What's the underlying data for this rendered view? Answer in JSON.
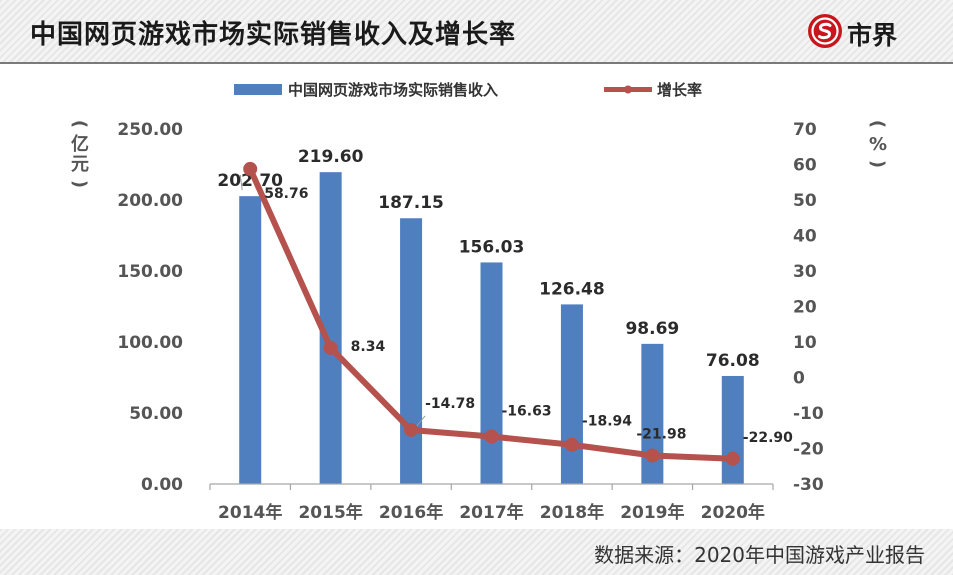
{
  "header": {
    "title": "中国网页游戏市场实际销售收入及增长率",
    "logo_text": "市界"
  },
  "footer": {
    "source": "数据来源：2020年中国游戏产业报告"
  },
  "colors": {
    "bar": "#4f7fbf",
    "line": "#b5524d",
    "logo_red": "#c8161d"
  },
  "icons": {
    "logo": "s-coin-icon"
  },
  "chart_data": {
    "type": "bar+line",
    "categories": [
      "2014年",
      "2015年",
      "2016年",
      "2017年",
      "2018年",
      "2019年",
      "2020年"
    ],
    "series": [
      {
        "name": "中国网页游戏市场实际销售收入",
        "type": "bar",
        "axis": "left",
        "values": [
          202.7,
          219.6,
          187.15,
          156.03,
          126.48,
          98.69,
          76.08
        ],
        "labels": [
          "202.70",
          "219.60",
          "187.15",
          "156.03",
          "126.48",
          "98.69",
          "76.08"
        ]
      },
      {
        "name": "增长率",
        "type": "line",
        "axis": "right",
        "values": [
          58.76,
          8.34,
          -14.78,
          -16.63,
          -18.94,
          -21.98,
          -22.9
        ],
        "labels": [
          "58.76",
          "8.34",
          "-14.78",
          "-16.63",
          "-18.94",
          "-21.98",
          "-22.90"
        ]
      }
    ],
    "left_axis": {
      "unit_label": [
        "(",
        "亿",
        "元",
        ")"
      ],
      "ylim": [
        0,
        250
      ],
      "ticks": [
        0,
        50,
        100,
        150,
        200,
        250
      ],
      "tick_labels": [
        "0.00",
        "50.00",
        "100.00",
        "150.00",
        "200.00",
        "250.00"
      ]
    },
    "right_axis": {
      "unit_label": [
        "(",
        "%",
        ")"
      ],
      "ylim": [
        -30,
        70
      ],
      "ticks": [
        -30,
        -20,
        -10,
        0,
        10,
        20,
        30,
        40,
        50,
        60,
        70
      ],
      "tick_labels": [
        "-30",
        "-20",
        "-10",
        "0",
        "10",
        "20",
        "30",
        "40",
        "50",
        "60",
        "70"
      ]
    },
    "grid": false,
    "legend_position": "top-center"
  }
}
